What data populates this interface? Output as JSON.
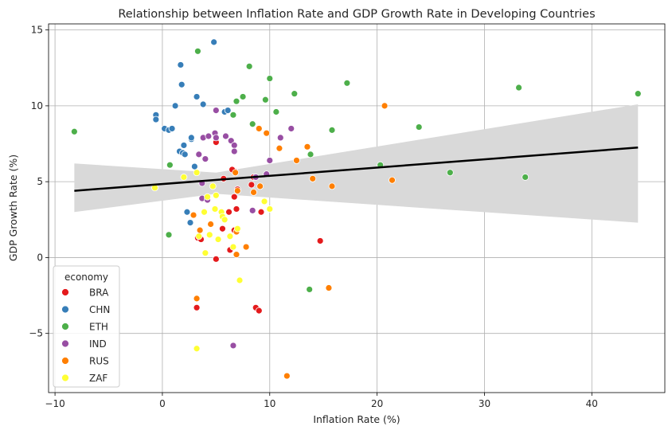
{
  "chart_data": {
    "type": "scatter",
    "title": "Relationship between Inflation Rate and GDP Growth Rate in Developing Countries",
    "xlabel": "Inflation Rate (%)",
    "ylabel": "GDP Growth Rate (%)",
    "xlim": [
      -10.6,
      46.8
    ],
    "ylim": [
      -8.9,
      15.4
    ],
    "xticks": [
      -10,
      0,
      10,
      20,
      30,
      40
    ],
    "yticks": [
      -5,
      0,
      5,
      10,
      15
    ],
    "grid": true,
    "legend": {
      "title": "economy",
      "placement": "lower-left"
    },
    "series": [
      {
        "name": "BRA",
        "color": "#e41a1c",
        "points": [
          [
            3.3,
            1.3
          ],
          [
            3.6,
            1.2
          ],
          [
            5.0,
            -0.1
          ],
          [
            5.6,
            1.9
          ],
          [
            6.3,
            0.5
          ],
          [
            6.7,
            1.8
          ],
          [
            6.7,
            4.0
          ],
          [
            7.0,
            4.5
          ],
          [
            6.9,
            3.2
          ],
          [
            6.7,
            5.7
          ],
          [
            6.5,
            5.8
          ],
          [
            5.0,
            7.6
          ],
          [
            8.3,
            4.8
          ],
          [
            9.2,
            3.0
          ],
          [
            14.7,
            1.1
          ],
          [
            8.7,
            -3.3
          ],
          [
            9.0,
            -3.5
          ],
          [
            3.2,
            -3.3
          ],
          [
            8.5,
            5.3
          ],
          [
            6.2,
            3.0
          ],
          [
            5.7,
            5.2
          ]
        ]
      },
      {
        "name": "CHN",
        "color": "#377eb8",
        "points": [
          [
            1.7,
            12.7
          ],
          [
            4.8,
            14.2
          ],
          [
            -0.6,
            9.4
          ],
          [
            -0.6,
            9.1
          ],
          [
            0.2,
            8.5
          ],
          [
            0.6,
            8.4
          ],
          [
            0.9,
            8.5
          ],
          [
            1.2,
            10.0
          ],
          [
            1.6,
            7.0
          ],
          [
            1.9,
            6.9
          ],
          [
            2.1,
            6.8
          ],
          [
            2.7,
            7.8
          ],
          [
            2.7,
            7.9
          ],
          [
            1.8,
            11.4
          ],
          [
            3.2,
            10.6
          ],
          [
            3.8,
            10.1
          ],
          [
            5.8,
            9.6
          ],
          [
            6.1,
            9.7
          ],
          [
            2.3,
            3.0
          ],
          [
            2.6,
            2.3
          ],
          [
            3.0,
            6.0
          ],
          [
            2.0,
            7.4
          ]
        ]
      },
      {
        "name": "ETH",
        "color": "#4daf4a",
        "points": [
          [
            -8.2,
            8.3
          ],
          [
            3.3,
            13.6
          ],
          [
            8.1,
            12.6
          ],
          [
            10.0,
            11.8
          ],
          [
            17.2,
            11.5
          ],
          [
            33.2,
            11.2
          ],
          [
            44.3,
            10.8
          ],
          [
            12.3,
            10.8
          ],
          [
            7.5,
            10.6
          ],
          [
            9.6,
            10.4
          ],
          [
            6.9,
            10.3
          ],
          [
            10.6,
            9.6
          ],
          [
            6.6,
            9.4
          ],
          [
            8.4,
            8.8
          ],
          [
            15.8,
            8.4
          ],
          [
            23.9,
            8.6
          ],
          [
            13.8,
            6.8
          ],
          [
            20.3,
            6.1
          ],
          [
            26.8,
            5.6
          ],
          [
            33.8,
            5.3
          ],
          [
            0.7,
            6.1
          ],
          [
            0.6,
            1.5
          ],
          [
            13.7,
            -2.1
          ]
        ]
      },
      {
        "name": "IND",
        "color": "#984ea3",
        "points": [
          [
            5.0,
            9.7
          ],
          [
            4.9,
            8.2
          ],
          [
            5.0,
            7.9
          ],
          [
            3.8,
            7.9
          ],
          [
            4.3,
            8.0
          ],
          [
            5.9,
            8.0
          ],
          [
            6.4,
            7.7
          ],
          [
            6.7,
            7.4
          ],
          [
            6.7,
            7.0
          ],
          [
            3.4,
            6.8
          ],
          [
            4.0,
            6.5
          ],
          [
            3.7,
            4.9
          ],
          [
            3.7,
            3.9
          ],
          [
            4.2,
            3.8
          ],
          [
            9.7,
            5.5
          ],
          [
            8.7,
            5.3
          ],
          [
            10.0,
            6.4
          ],
          [
            11.0,
            7.9
          ],
          [
            12.0,
            8.5
          ],
          [
            8.4,
            3.1
          ],
          [
            6.6,
            -5.8
          ]
        ]
      },
      {
        "name": "RUS",
        "color": "#ff7f00",
        "points": [
          [
            20.7,
            10.0
          ],
          [
            9.0,
            8.5
          ],
          [
            9.7,
            8.2
          ],
          [
            10.9,
            7.2
          ],
          [
            13.5,
            7.3
          ],
          [
            12.5,
            6.4
          ],
          [
            14.0,
            5.2
          ],
          [
            15.8,
            4.7
          ],
          [
            21.4,
            5.1
          ],
          [
            6.8,
            5.6
          ],
          [
            8.5,
            4.3
          ],
          [
            9.1,
            4.7
          ],
          [
            7.0,
            4.4
          ],
          [
            6.9,
            1.7
          ],
          [
            4.5,
            2.2
          ],
          [
            2.9,
            2.8
          ],
          [
            3.5,
            1.8
          ],
          [
            3.2,
            -2.7
          ],
          [
            6.9,
            0.2
          ],
          [
            7.8,
            0.7
          ],
          [
            15.5,
            -2.0
          ],
          [
            11.6,
            -7.8
          ]
        ]
      },
      {
        "name": "ZAF",
        "color": "#ffff33",
        "points": [
          [
            -0.7,
            4.6
          ],
          [
            2.0,
            5.3
          ],
          [
            3.2,
            5.6
          ],
          [
            3.9,
            3.0
          ],
          [
            4.2,
            4.0
          ],
          [
            4.7,
            4.7
          ],
          [
            5.0,
            4.1
          ],
          [
            4.9,
            3.2
          ],
          [
            5.5,
            3.0
          ],
          [
            5.6,
            2.7
          ],
          [
            5.8,
            2.5
          ],
          [
            6.3,
            1.4
          ],
          [
            5.2,
            1.2
          ],
          [
            4.4,
            1.5
          ],
          [
            3.4,
            1.4
          ],
          [
            4.0,
            0.3
          ],
          [
            6.6,
            0.7
          ],
          [
            7.0,
            1.9
          ],
          [
            7.2,
            -1.5
          ],
          [
            9.5,
            3.7
          ],
          [
            10.0,
            3.2
          ],
          [
            3.2,
            -6.0
          ]
        ]
      }
    ],
    "regression": {
      "x_range": [
        -8.2,
        44.3
      ],
      "y_start": 4.4,
      "y_end": 7.25,
      "ci_lower": [
        [
          -8.2,
          3.0
        ],
        [
          5.0,
          4.2
        ],
        [
          44.3,
          2.3
        ]
      ],
      "ci_upper": [
        [
          -8.2,
          6.2
        ],
        [
          5.0,
          5.6
        ],
        [
          44.3,
          10.1
        ]
      ],
      "line_color": "#000000",
      "band_color": "#d9d9d9"
    }
  }
}
